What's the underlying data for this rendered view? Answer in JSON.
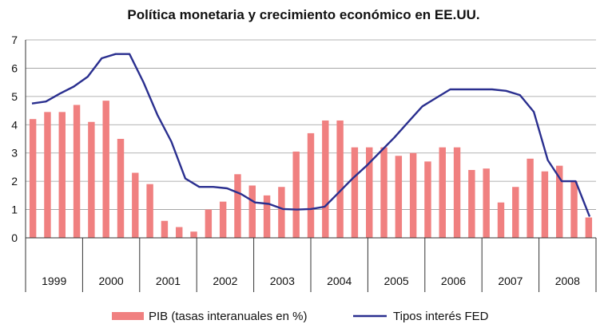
{
  "chart_data": {
    "type": "bar+line",
    "title": "Política monetaria y crecimiento económico en EE.UU.",
    "xlabel": "",
    "ylabel": "",
    "ylim": [
      0,
      7
    ],
    "yticks": [
      "0",
      "1",
      "2",
      "3",
      "4",
      "5",
      "6",
      "7"
    ],
    "grid": true,
    "legend_position": "bottom",
    "categories": [
      "1999",
      "2000",
      "2001",
      "2002",
      "2003",
      "2004",
      "2005",
      "2006",
      "2007",
      "2008"
    ],
    "bar_series": {
      "name": "PIB (tasas interanuales en %)",
      "color": "#f08080",
      "values": [
        4.2,
        4.45,
        4.45,
        4.7,
        4.1,
        4.85,
        3.5,
        2.3,
        1.9,
        0.6,
        0.38,
        0.22,
        1.0,
        1.28,
        2.25,
        1.85,
        1.5,
        1.8,
        3.05,
        3.7,
        4.15,
        4.15,
        3.2,
        3.2,
        3.2,
        2.9,
        3.0,
        2.7,
        3.2,
        3.2,
        2.4,
        2.45,
        1.25,
        1.8,
        2.8,
        2.35,
        2.55,
        2.0,
        0.72
      ]
    },
    "line_series": {
      "name": "Tipos interés FED",
      "color": "#2a2f8f",
      "values": [
        4.75,
        4.82,
        5.1,
        5.35,
        5.7,
        6.35,
        6.5,
        6.5,
        5.5,
        4.35,
        3.4,
        2.1,
        1.8,
        1.8,
        1.75,
        1.55,
        1.25,
        1.2,
        1.02,
        1.0,
        1.02,
        1.1,
        1.6,
        2.1,
        2.55,
        3.05,
        3.55,
        4.1,
        4.65,
        4.95,
        5.25,
        5.25,
        5.25,
        5.25,
        5.2,
        5.05,
        4.45,
        2.75,
        2.0,
        2.0,
        0.75
      ]
    }
  }
}
